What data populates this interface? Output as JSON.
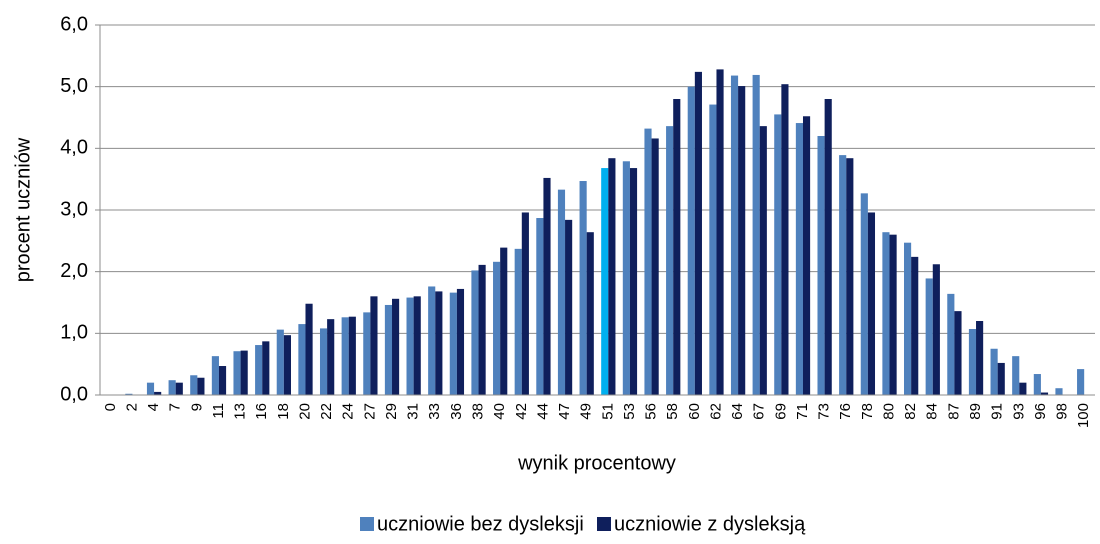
{
  "chart_data": {
    "type": "bar",
    "x_label": "wynik procentowy",
    "y_label": "procent uczniów",
    "categories": [
      "0",
      "2",
      "4",
      "7",
      "9",
      "11",
      "13",
      "16",
      "18",
      "20",
      "22",
      "24",
      "27",
      "29",
      "31",
      "33",
      "36",
      "38",
      "40",
      "42",
      "44",
      "47",
      "49",
      "51",
      "53",
      "56",
      "58",
      "60",
      "62",
      "64",
      "67",
      "69",
      "71",
      "73",
      "76",
      "78",
      "80",
      "82",
      "84",
      "87",
      "89",
      "91",
      "93",
      "96",
      "98",
      "100"
    ],
    "series": [
      {
        "name": "uczniowie bez dysleksji",
        "color": "#4f81bd",
        "point_colors": {
          "23": "#00b0f0"
        },
        "values": [
          0,
          0.02,
          0.2,
          0.24,
          0.32,
          0.63,
          0.71,
          0.81,
          1.06,
          1.15,
          1.08,
          1.26,
          1.34,
          1.46,
          1.58,
          1.76,
          1.66,
          2.02,
          2.16,
          2.37,
          2.87,
          3.33,
          3.47,
          3.68,
          3.79,
          4.32,
          4.36,
          5.0,
          4.71,
          5.18,
          5.19,
          4.55,
          4.41,
          4.2,
          3.89,
          3.27,
          2.64,
          2.47,
          1.89,
          1.64,
          1.07,
          0.75,
          0.63,
          0.34,
          0.11,
          0.42
        ]
      },
      {
        "name": "uczniowie z dysleksją",
        "color": "#0f1f5c",
        "values": [
          0,
          0,
          0.05,
          0.2,
          0.28,
          0.47,
          0.72,
          0.87,
          0.97,
          1.48,
          1.23,
          1.27,
          1.6,
          1.56,
          1.6,
          1.68,
          1.72,
          2.11,
          2.39,
          2.96,
          3.52,
          2.84,
          2.64,
          3.84,
          3.68,
          4.16,
          4.8,
          5.24,
          5.28,
          5.01,
          4.36,
          5.04,
          4.52,
          4.8,
          3.84,
          2.96,
          2.6,
          2.24,
          2.12,
          1.36,
          1.2,
          0.52,
          0.2,
          0.04,
          0,
          0
        ]
      }
    ],
    "ylim": [
      0,
      6
    ],
    "yticks": [
      {
        "value": 0,
        "label": "0,0"
      },
      {
        "value": 1,
        "label": "1,0"
      },
      {
        "value": 2,
        "label": "2,0"
      },
      {
        "value": 3,
        "label": "3,0"
      },
      {
        "value": 4,
        "label": "4,0"
      },
      {
        "value": 5,
        "label": "5,0"
      },
      {
        "value": 6,
        "label": "6,0"
      }
    ],
    "grid": true
  }
}
